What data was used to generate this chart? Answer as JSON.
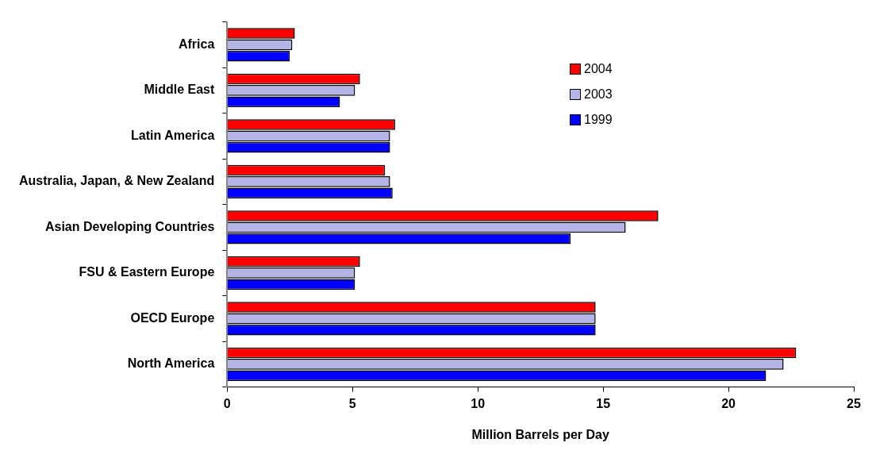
{
  "chart_data": {
    "type": "bar",
    "orientation": "horizontal",
    "xlabel": "Million Barrels per Day",
    "categories": [
      "Africa",
      "Middle East",
      "Latin America",
      "Australia, Japan, & New Zealand",
      "Asian Developing Countries",
      "FSU & Eastern Europe",
      "OECD Europe",
      "North America"
    ],
    "series": [
      {
        "name": "2004",
        "color": "#ff0000",
        "values": [
          2.7,
          5.3,
          6.7,
          6.3,
          17.2,
          5.3,
          14.7,
          22.7
        ]
      },
      {
        "name": "2003",
        "color": "#b4b4e6",
        "values": [
          2.6,
          5.1,
          6.5,
          6.5,
          15.9,
          5.1,
          14.7,
          22.2
        ]
      },
      {
        "name": "1999",
        "color": "#0000ff",
        "values": [
          2.5,
          4.5,
          6.5,
          6.6,
          13.7,
          5.1,
          14.7,
          21.5
        ]
      }
    ],
    "xlim": [
      0,
      25
    ],
    "xticks": [
      0,
      5,
      10,
      15,
      20,
      25
    ],
    "grid": false,
    "legend": "top right"
  }
}
